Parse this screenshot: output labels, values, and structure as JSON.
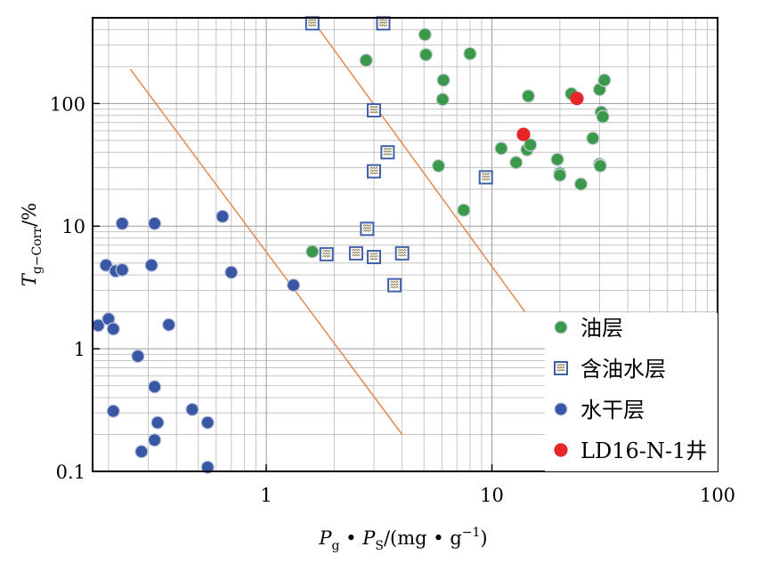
{
  "chart_data": {
    "type": "scatter",
    "x_scale": "log",
    "y_scale": "log",
    "xlim": [
      0.17,
      100
    ],
    "ylim": [
      0.1,
      500
    ],
    "grid": true,
    "legend_position": "bottom-right",
    "x_ticks": [
      {
        "value": 1,
        "label": "1"
      },
      {
        "value": 10,
        "label": "10"
      },
      {
        "value": 100,
        "label": "100"
      }
    ],
    "y_ticks": [
      {
        "value": 0.1,
        "label": "0.1"
      },
      {
        "value": 1,
        "label": "1"
      },
      {
        "value": 10,
        "label": "10"
      },
      {
        "value": 100,
        "label": "100"
      }
    ],
    "xlabel": {
      "p1": "P",
      "s1": "g",
      "mid": " • ",
      "p2": "P",
      "s2": "S",
      "unit_open": "/(mg • g",
      "sup": "−1",
      "unit_close": ")"
    },
    "ylabel": {
      "main": "T",
      "sub": "g−Corr",
      "unit": "/%"
    },
    "colors": {
      "oil": "#3a9a4a",
      "water_oil": "#3f5fa8",
      "dry": "#3a57a6",
      "well": "#e8262a",
      "guide": "#e08a55"
    },
    "guide_lines": [
      {
        "x1": 0.25,
        "y1": 190,
        "x2": 4.0,
        "y2": 0.2
      },
      {
        "x1": 1.6,
        "y1": 480,
        "x2": 14,
        "y2": 2.0
      }
    ],
    "series": [
      {
        "name": "油层",
        "marker": "circle",
        "points": [
          [
            2.77,
            225
          ],
          [
            5.05,
            365
          ],
          [
            5.1,
            250
          ],
          [
            6.1,
            155
          ],
          [
            6.05,
            108
          ],
          [
            8.0,
            255
          ],
          [
            14.5,
            115
          ],
          [
            22.5,
            120
          ],
          [
            30,
            130
          ],
          [
            31.5,
            155
          ],
          [
            30.5,
            85
          ],
          [
            31,
            78
          ],
          [
            28,
            52
          ],
          [
            11,
            43
          ],
          [
            14.3,
            42
          ],
          [
            14.8,
            46
          ],
          [
            12.8,
            33
          ],
          [
            19.5,
            35
          ],
          [
            20,
            27
          ],
          [
            20,
            26
          ],
          [
            24.8,
            22
          ],
          [
            30,
            32
          ],
          [
            30.2,
            31
          ],
          [
            5.8,
            31
          ],
          [
            7.5,
            13.5
          ],
          [
            1.6,
            6.2
          ]
        ]
      },
      {
        "name": "含油水层",
        "marker": "square",
        "points": [
          [
            1.6,
            450
          ],
          [
            3.3,
            450
          ],
          [
            3.0,
            88
          ],
          [
            3.45,
            40
          ],
          [
            3.0,
            28
          ],
          [
            9.4,
            25
          ],
          [
            2.8,
            9.5
          ],
          [
            1.85,
            5.9
          ],
          [
            2.5,
            6.0
          ],
          [
            3.0,
            5.6
          ],
          [
            4.0,
            6.0
          ],
          [
            3.7,
            3.3
          ]
        ]
      },
      {
        "name": "水干层",
        "marker": "circle",
        "points": [
          [
            0.23,
            10.5
          ],
          [
            0.32,
            10.5
          ],
          [
            0.64,
            12
          ],
          [
            0.195,
            4.8
          ],
          [
            0.215,
            4.3
          ],
          [
            0.23,
            4.4
          ],
          [
            0.31,
            4.8
          ],
          [
            0.7,
            4.2
          ],
          [
            1.32,
            3.3
          ],
          [
            0.18,
            1.55
          ],
          [
            0.2,
            1.75
          ],
          [
            0.21,
            1.45
          ],
          [
            0.37,
            1.57
          ],
          [
            0.27,
            0.87
          ],
          [
            0.32,
            0.49
          ],
          [
            0.21,
            0.31
          ],
          [
            0.47,
            0.32
          ],
          [
            0.33,
            0.25
          ],
          [
            0.55,
            0.25
          ],
          [
            0.32,
            0.18
          ],
          [
            0.28,
            0.145
          ],
          [
            0.55,
            0.108
          ]
        ]
      },
      {
        "name": "LD16-N-1井",
        "marker": "circle",
        "points": [
          [
            23.8,
            110
          ],
          [
            13.8,
            56
          ]
        ]
      }
    ]
  }
}
